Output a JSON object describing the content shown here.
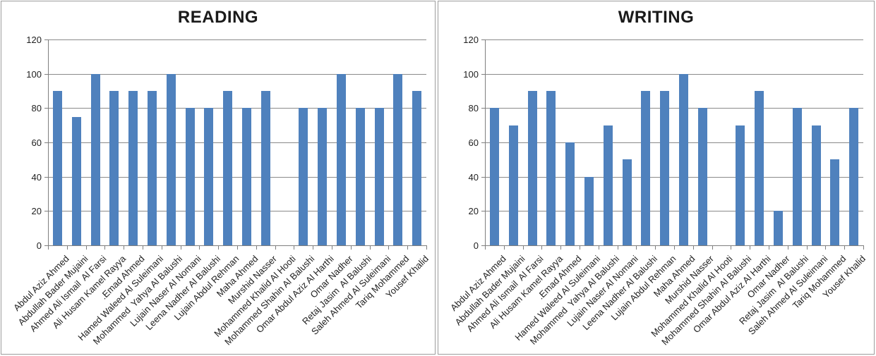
{
  "style": {
    "bar_color": "#4F81BD",
    "grid_color": "#8a8a8a",
    "axis_color": "#7f7f7f",
    "panel_border": "#9d9d9d",
    "title_color": "#1a1a1a",
    "text_color": "#1f1f1f",
    "background": "#ffffff"
  },
  "chart_data": [
    {
      "type": "bar",
      "title": "READING",
      "categories": [
        "Abdul Aziz Ahmed",
        "Abdullah Bader Mujaini",
        "Ahmed Ali Ismail  Al Farsi",
        "Ali Husam Kamel Rayya",
        ".Emad Ahmed",
        "Hamed Waleed Al Suleimani",
        "Mohammed  Yahya Al Balushi",
        "Lujain Naser Al Nomani",
        "Leena Nadher Al Balushi",
        "Lujain Abdul Rehman",
        "Maha Ahmed",
        "Murshid Nasser",
        "Mohammed Khalid Al Hooti",
        "Mohammed Shahin Al Balushi",
        "Omar Abdul Aziz Al Harthi",
        "Omar Nadher",
        "Retaj Jasim  Al Balushi",
        "Saleh Ahmed Al Suleimani",
        "Tariq Mohammed",
        "Yousef Khalid"
      ],
      "values": [
        90,
        75,
        100,
        90,
        90,
        90,
        100,
        80,
        80,
        90,
        80,
        90,
        0,
        80,
        80,
        100,
        80,
        80,
        100,
        90
      ],
      "xlabel": "",
      "ylabel": "",
      "ylim": [
        0,
        120
      ],
      "y_ticks": [
        0,
        20,
        40,
        60,
        80,
        100,
        120
      ],
      "grid": true,
      "legend": "none",
      "x_label_rotation_deg": 45
    },
    {
      "type": "bar",
      "title": "WRITING",
      "categories": [
        "Abdul Aziz Ahmed",
        "Abdullah Bader Mujaini",
        "Ahmed Ali Ismail  Al Farsi",
        "Ali Husam Kamel Rayya",
        ".Emad Ahmed",
        "Hamed Waleed Al Suleimani",
        "Mohammed  Yahya Al Balushi",
        "Lujain Naser Al Nomani",
        "Leena Nadher Al Balushi",
        "Lujain Abdul Rehman",
        "Maha Ahmed",
        "Murshid Nasser",
        "Mohammed Khalid Al Hooti",
        "Mohammed Shahin Al Balushi",
        "Omar Abdul Aziz Al Harthi",
        "Omar Nadher",
        "Retaj Jasim  Al Balushi",
        "Saleh Ahmed Al Suleimani",
        "Tariq Mohammed",
        "Yousef Khalid"
      ],
      "values": [
        80,
        70,
        90,
        90,
        60,
        40,
        70,
        50,
        90,
        90,
        100,
        80,
        0,
        70,
        90,
        20,
        80,
        70,
        50,
        80
      ],
      "xlabel": "",
      "ylabel": "",
      "ylim": [
        0,
        120
      ],
      "y_ticks": [
        0,
        20,
        40,
        60,
        80,
        100,
        120
      ],
      "grid": true,
      "legend": "none",
      "x_label_rotation_deg": 45
    }
  ]
}
